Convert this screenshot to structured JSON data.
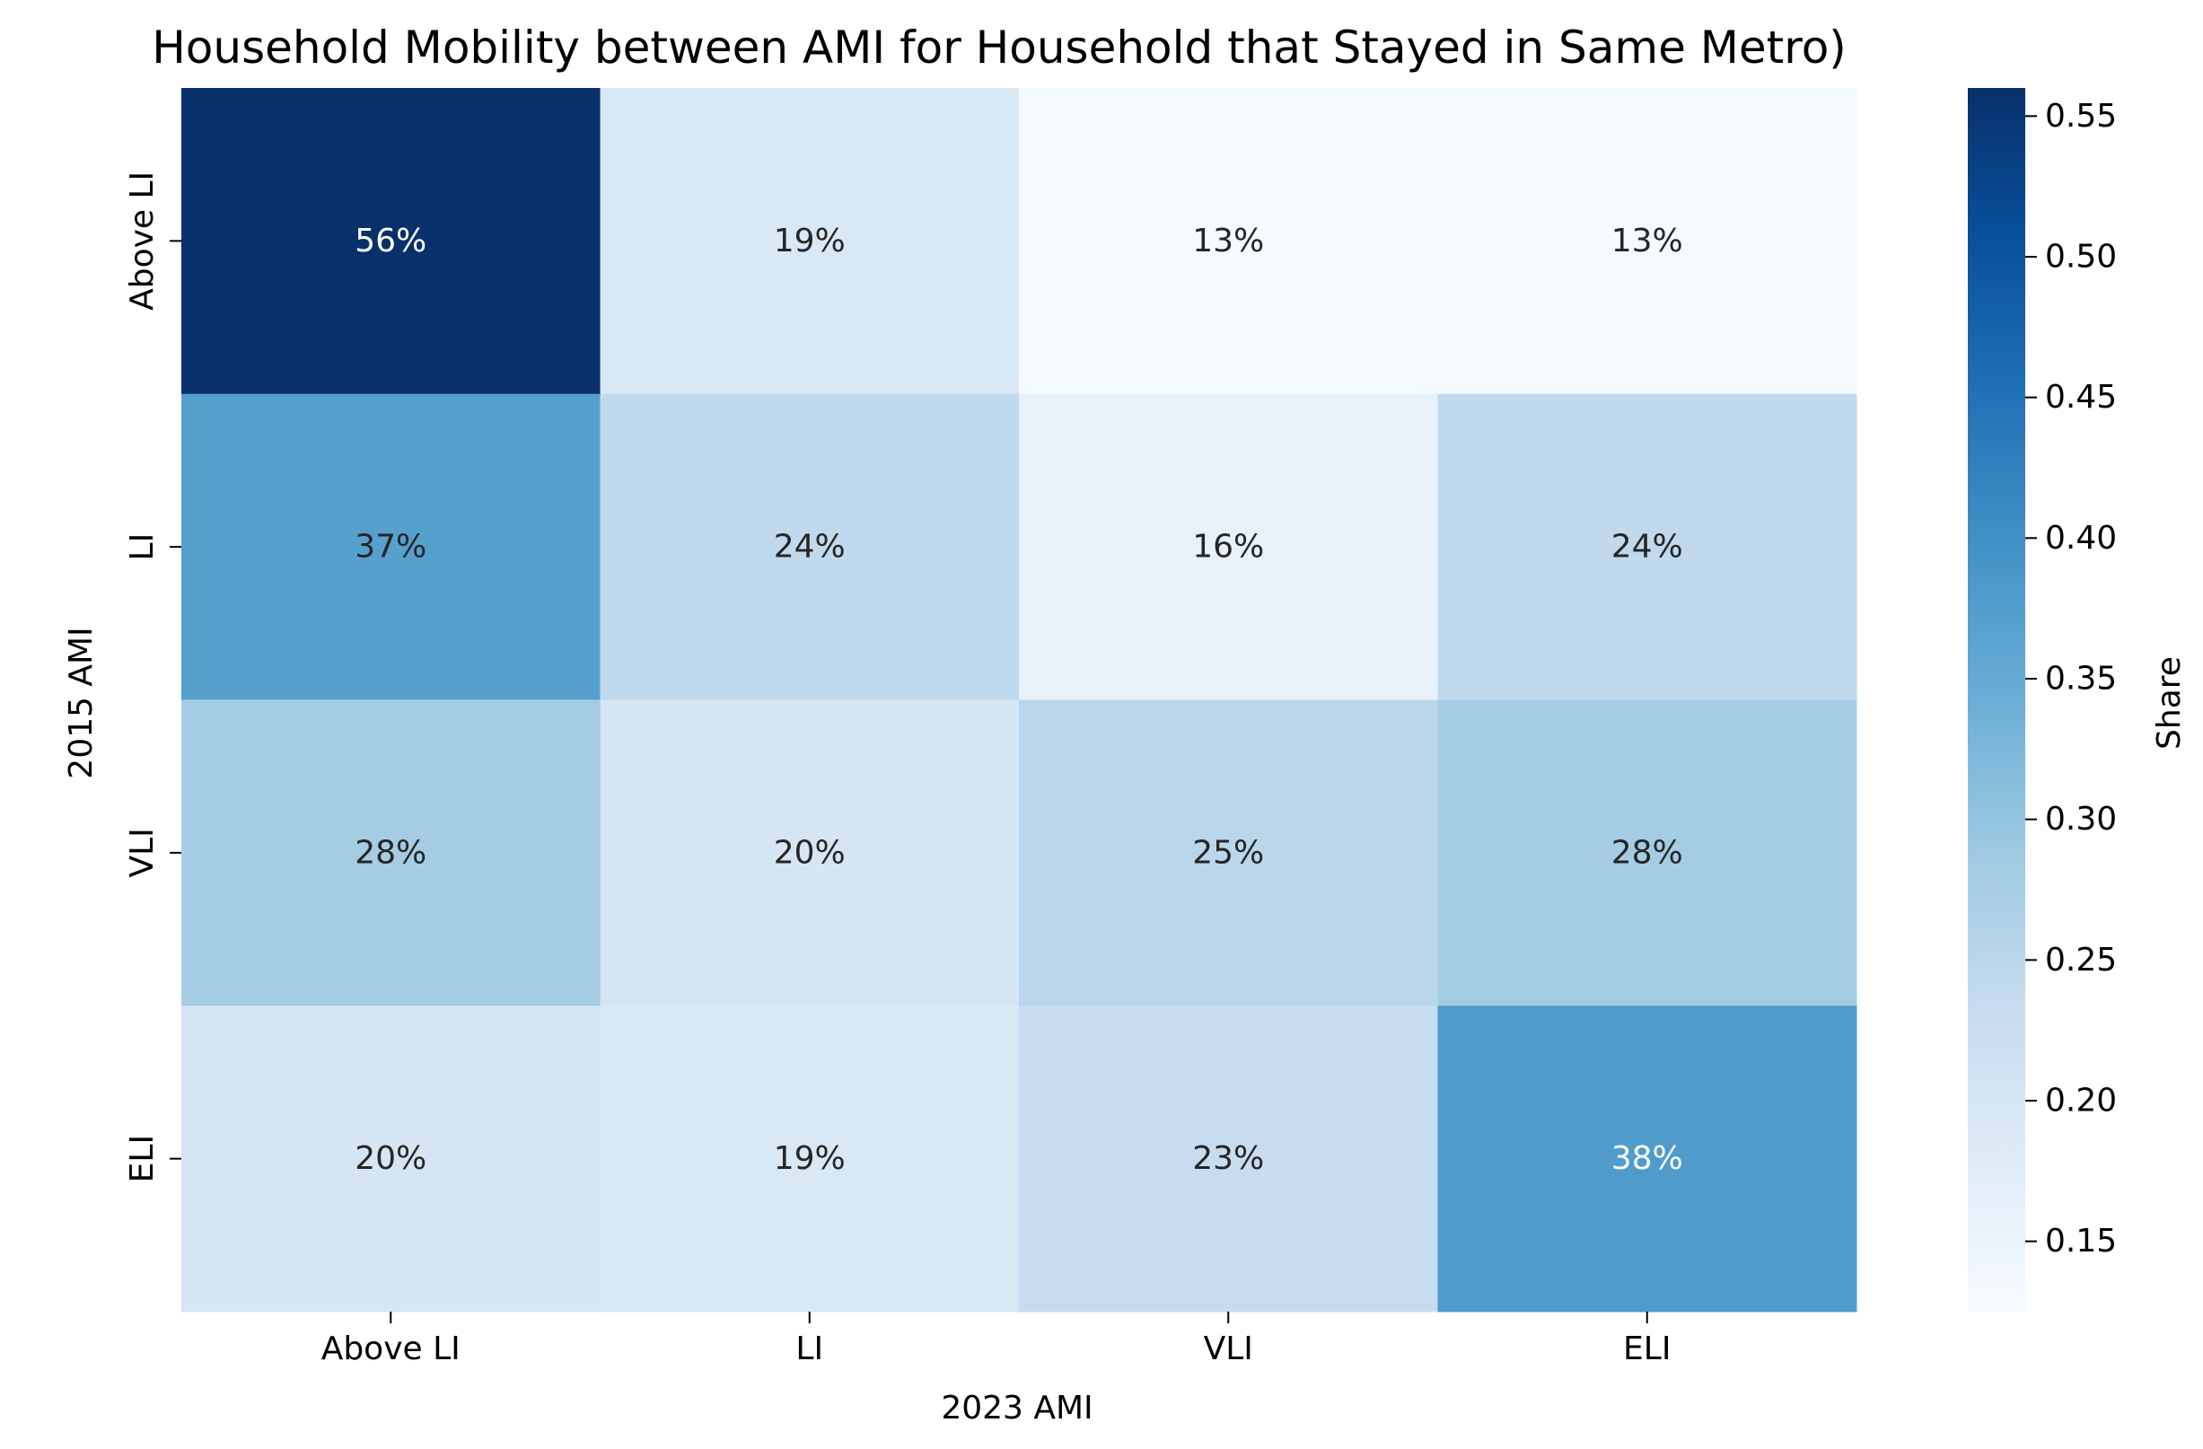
{
  "chart_data": {
    "type": "heatmap",
    "title": "Household Mobility between AMI for Household that Stayed in Same Metro)",
    "xlabel": "2023 AMI",
    "ylabel": "2015 AMI",
    "x_categories": [
      "Above LI",
      "LI",
      "VLI",
      "ELI"
    ],
    "y_categories": [
      "Above LI",
      "LI",
      "VLI",
      "ELI"
    ],
    "values": [
      [
        0.56,
        0.19,
        0.13,
        0.13
      ],
      [
        0.37,
        0.24,
        0.16,
        0.24
      ],
      [
        0.28,
        0.2,
        0.25,
        0.28
      ],
      [
        0.2,
        0.19,
        0.23,
        0.38
      ]
    ],
    "cell_labels": [
      [
        "56%",
        "19%",
        "13%",
        "13%"
      ],
      [
        "37%",
        "24%",
        "16%",
        "24%"
      ],
      [
        "28%",
        "20%",
        "25%",
        "28%"
      ],
      [
        "20%",
        "19%",
        "23%",
        "38%"
      ]
    ],
    "colorbar": {
      "label": "Share",
      "range": [
        0.125,
        0.56
      ],
      "ticks": [
        "0.15",
        "0.20",
        "0.25",
        "0.30",
        "0.35",
        "0.40",
        "0.45",
        "0.50",
        "0.55"
      ],
      "colormap": "Blues"
    }
  }
}
